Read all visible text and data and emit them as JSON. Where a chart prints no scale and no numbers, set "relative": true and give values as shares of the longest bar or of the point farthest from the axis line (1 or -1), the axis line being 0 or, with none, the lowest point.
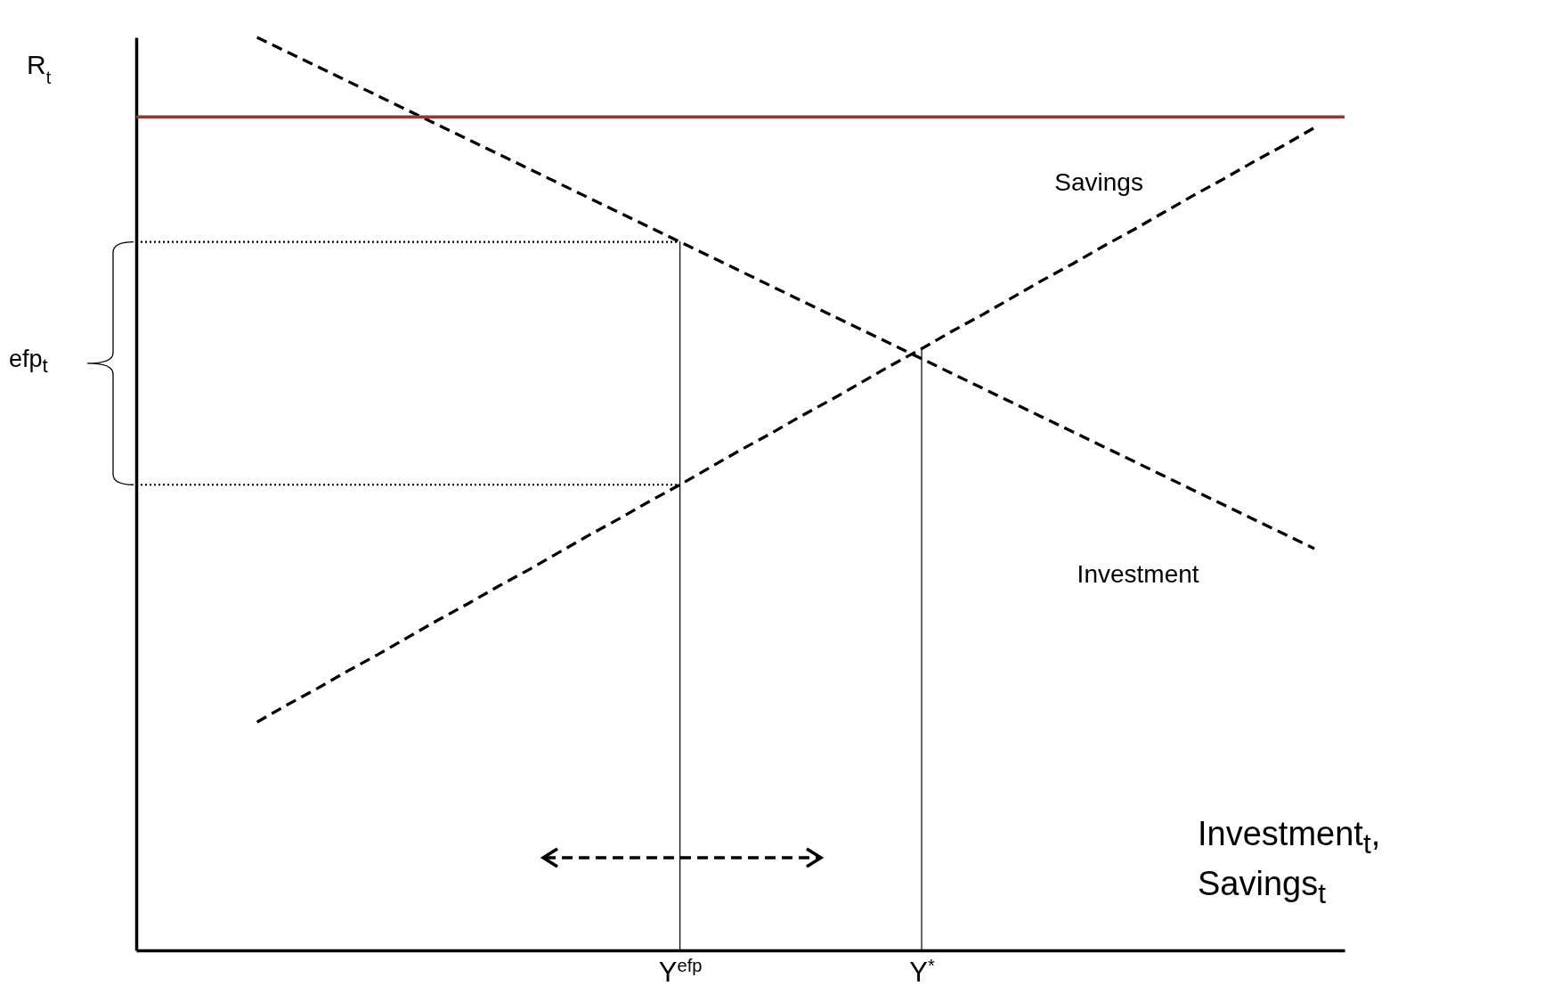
{
  "chart_data": {
    "type": "line",
    "relative": true,
    "ylabel": "R$_{t}$",
    "xlabel": "Investment$_{t}$, Savings$_{t}$",
    "grid": false,
    "legend": false,
    "tick_labels": "x",
    "annotations": [
      "efp$_{t}$"
    ],
    "categories": [
      null,
      null,
      null,
      null,
      null,
      null,
      null,
      null,
      null,
      null,
      null,
      null,
      null,
      null,
      null,
      null,
      null,
      null,
      "Y$^{efp}$",
      null,
      null,
      null,
      null,
      null,
      null,
      null,
      "Y$^{*}$",
      null,
      null,
      null,
      null,
      null,
      null,
      null,
      null,
      null,
      null,
      null,
      null,
      null,
      null
    ],
    "ref_lines": [
      {
        "axis": "y",
        "value": 0.913,
        "color": "#953735",
        "line_style": "solid"
      },
      {
        "axis": "x",
        "value": "Y$^{efp}$",
        "color": "#000000",
        "line_style": "solid"
      },
      {
        "axis": "x",
        "value": "Y$^{*}$",
        "color": "#000000",
        "line_style": "solid"
      }
    ],
    "series": [
      {
        "name": "Investment",
        "color": "#000000",
        "line_style": "dashed",
        "values": [
          null,
          null,
          null,
          null,
          1,
          0.984,
          0.968,
          0.952,
          0.936,
          0.92,
          0.904,
          0.888,
          0.872,
          0.856,
          0.84,
          0.824,
          0.808,
          0.792,
          0.776,
          0.76,
          0.744,
          0.728,
          0.712,
          0.696,
          0.68,
          0.664,
          0.648,
          0.632,
          0.616,
          0.6,
          0.584,
          0.568,
          0.552,
          0.536,
          0.52,
          0.504,
          0.488,
          0.472,
          0.456,
          0.44,
          null
        ]
      },
      {
        "name": "Savings",
        "color": "#000000",
        "line_style": "dashed",
        "values": [
          null,
          null,
          null,
          null,
          0.25,
          0.269,
          0.287,
          0.306,
          0.324,
          0.343,
          0.362,
          0.38,
          0.399,
          0.417,
          0.436,
          0.455,
          0.473,
          0.492,
          0.51,
          0.529,
          0.548,
          0.566,
          0.585,
          0.603,
          0.622,
          0.641,
          0.659,
          0.678,
          0.696,
          0.715,
          0.734,
          0.752,
          0.771,
          0.789,
          0.808,
          0.827,
          0.845,
          0.864,
          0.882,
          0.901,
          null
        ]
      },
      {
        "color": "#000000",
        "line_style": "dotted",
        "values": [
          0.776,
          0.776,
          0.776,
          0.776,
          0.776,
          0.776,
          0.776,
          0.776,
          0.776,
          0.776,
          0.776,
          0.776,
          0.776,
          0.776,
          0.776,
          0.776,
          0.776,
          0.776,
          0.776,
          null,
          null,
          null,
          null,
          null,
          null,
          null,
          null,
          null,
          null,
          null,
          null,
          null,
          null,
          null,
          null,
          null,
          null,
          null,
          null,
          null,
          null
        ]
      },
      {
        "color": "#000000",
        "line_style": "dotted",
        "values": [
          0.51,
          0.51,
          0.51,
          0.51,
          0.51,
          0.51,
          0.51,
          0.51,
          0.51,
          0.51,
          0.51,
          0.51,
          0.51,
          0.51,
          0.51,
          0.51,
          0.51,
          0.51,
          0.51,
          null,
          null,
          null,
          null,
          null,
          null,
          null,
          null,
          null,
          null,
          null,
          null,
          null,
          null,
          null,
          null,
          null,
          null,
          null,
          null,
          null,
          null
        ]
      }
    ]
  }
}
